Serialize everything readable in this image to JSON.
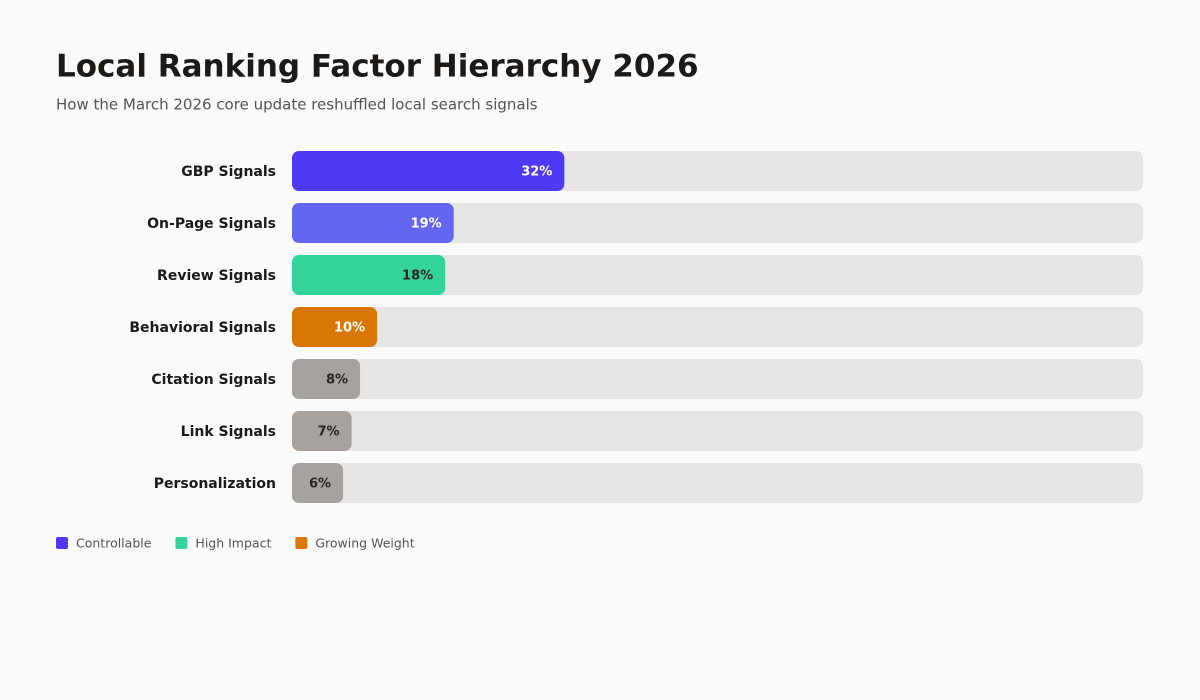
{
  "chart_data": {
    "type": "bar",
    "orientation": "horizontal",
    "title": "Local Ranking Factor Hierarchy 2026",
    "subtitle": "How the March 2026 core update reshuffled local search signals",
    "categories": [
      "GBP Signals",
      "On-Page Signals",
      "Review Signals",
      "Behavioral Signals",
      "Citation Signals",
      "Link Signals",
      "Personalization"
    ],
    "values": [
      32,
      19,
      18,
      10,
      8,
      7,
      6
    ],
    "value_labels": [
      "32%",
      "19%",
      "18%",
      "10%",
      "8%",
      "7%",
      "6%"
    ],
    "colors": [
      "#4f39f6",
      "#6366f1",
      "#34d399",
      "#d97706",
      "#a8a29e",
      "#a8a29e",
      "#a8a29e"
    ],
    "xlim": [
      0,
      100
    ],
    "legend": [
      {
        "name": "Controllable",
        "color": "#4f39f6"
      },
      {
        "name": "High Impact",
        "color": "#34d399"
      },
      {
        "name": "Growing Weight",
        "color": "#d97706"
      }
    ]
  }
}
